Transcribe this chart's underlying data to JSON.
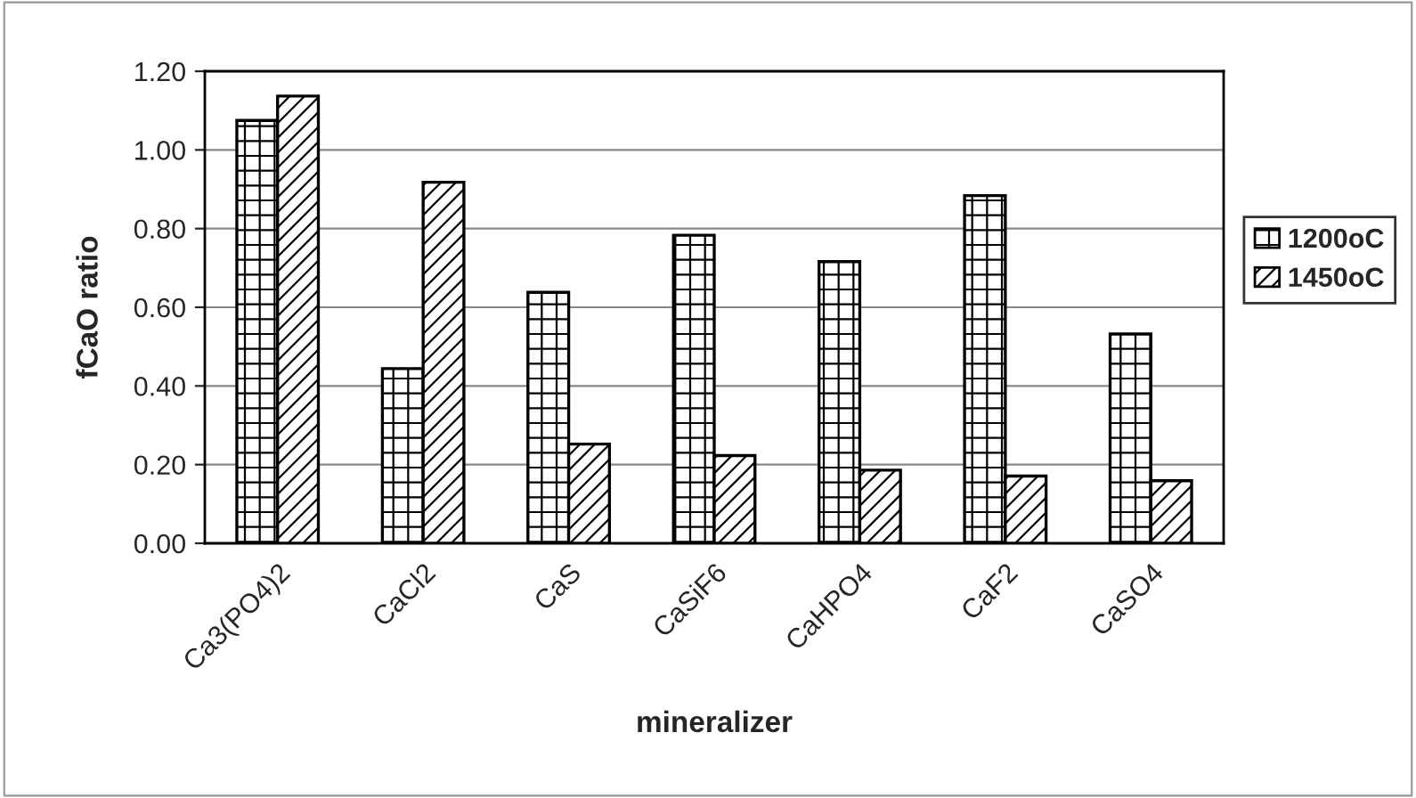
{
  "chart_data": {
    "type": "bar",
    "xlabel": "mineralizer",
    "ylabel": "fCaO ratio",
    "categories": [
      "Ca3(PO4)2",
      "CaCl2",
      "CaS",
      "CaSiF6",
      "CaHPO4",
      "CaF2",
      "CaSO4"
    ],
    "series": [
      {
        "name": "1200oC",
        "color": "#000000",
        "values": [
          1.075,
          0.444,
          0.638,
          0.783,
          0.716,
          0.884,
          0.532
        ]
      },
      {
        "name": "1450oC",
        "color": "#000000",
        "values": [
          1.137,
          0.918,
          0.252,
          0.223,
          0.186,
          0.171,
          0.159
        ]
      }
    ],
    "ylim": [
      0,
      1.2
    ],
    "yticks": [
      {
        "value": 0,
        "label": "0.00"
      },
      {
        "value": 0.2,
        "label": "0.20"
      },
      {
        "value": 0.4,
        "label": "0.40"
      },
      {
        "value": 0.6,
        "label": "0.60"
      },
      {
        "value": 0.8,
        "label": "0.80"
      },
      {
        "value": 1.0,
        "label": "1.00"
      },
      {
        "value": 1.2,
        "label": "1.20"
      }
    ],
    "grid": "y",
    "legend": "right"
  }
}
